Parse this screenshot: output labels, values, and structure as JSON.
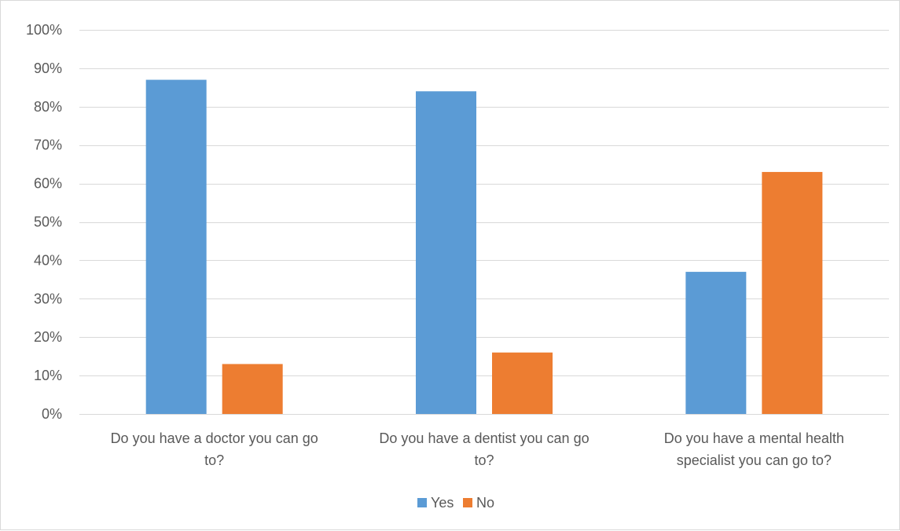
{
  "chart_data": {
    "type": "bar",
    "title": "",
    "xlabel": "",
    "ylabel": "",
    "categories": [
      [
        "Do you have a doctor you can go",
        "to?"
      ],
      [
        "Do you have a dentist you can go",
        "to?"
      ],
      [
        "Do you have a mental health",
        "specialist you can go to?"
      ]
    ],
    "series": [
      {
        "name": "Yes",
        "values": [
          87,
          84,
          37
        ],
        "color": "#5b9bd5"
      },
      {
        "name": "No",
        "values": [
          13,
          16,
          63
        ],
        "color": "#ed7d31"
      }
    ],
    "ylim": [
      0,
      100
    ],
    "yticks": [
      0,
      10,
      20,
      30,
      40,
      50,
      60,
      70,
      80,
      90,
      100
    ],
    "ytick_format": "percent",
    "grid": true,
    "legend_position": "bottom",
    "gridline_color": "#d9d9d9",
    "text_color": "#595959"
  }
}
